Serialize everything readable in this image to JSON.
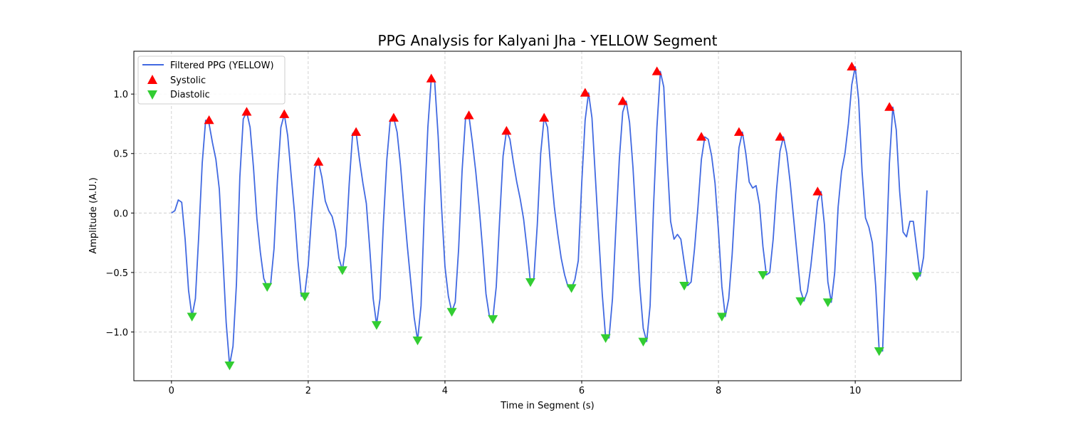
{
  "chart_data": {
    "type": "line",
    "title": "PPG Analysis for Kalyani Jha - YELLOW Segment",
    "xlabel": "Time in Segment (s)",
    "ylabel": "Amplitude (A.U.)",
    "xlim": [
      -0.55,
      11.55
    ],
    "ylim": [
      -1.41,
      1.36
    ],
    "xticks": [
      0,
      2,
      4,
      6,
      8,
      10
    ],
    "yticks": [
      -1.0,
      -0.5,
      0.0,
      0.5,
      1.0
    ],
    "xtick_labels": [
      "0",
      "2",
      "4",
      "6",
      "8",
      "10"
    ],
    "ytick_labels": [
      "−1.0",
      "−0.5",
      "0.0",
      "0.5",
      "1.0"
    ],
    "grid": true,
    "legend_position": "top-left",
    "colors": {
      "line": "#4169e1",
      "systolic": "#ff0000",
      "diastolic": "#32cd32"
    },
    "series": [
      {
        "name": "Filtered PPG (YELLOW)",
        "kind": "line",
        "x": [
          0.0,
          0.05,
          0.1,
          0.15,
          0.2,
          0.25,
          0.3,
          0.35,
          0.4,
          0.45,
          0.5,
          0.55,
          0.6,
          0.65,
          0.7,
          0.75,
          0.8,
          0.85,
          0.9,
          0.95,
          1.0,
          1.05,
          1.1,
          1.15,
          1.2,
          1.25,
          1.3,
          1.35,
          1.4,
          1.45,
          1.5,
          1.55,
          1.6,
          1.65,
          1.7,
          1.75,
          1.8,
          1.85,
          1.9,
          1.95,
          2.0,
          2.05,
          2.1,
          2.15,
          2.2,
          2.25,
          2.3,
          2.35,
          2.4,
          2.45,
          2.5,
          2.55,
          2.6,
          2.65,
          2.7,
          2.75,
          2.8,
          2.85,
          2.9,
          2.95,
          3.0,
          3.05,
          3.1,
          3.15,
          3.2,
          3.25,
          3.3,
          3.35,
          3.4,
          3.45,
          3.5,
          3.55,
          3.6,
          3.65,
          3.7,
          3.75,
          3.8,
          3.85,
          3.9,
          3.95,
          4.0,
          4.05,
          4.1,
          4.15,
          4.2,
          4.25,
          4.3,
          4.35,
          4.4,
          4.45,
          4.5,
          4.55,
          4.6,
          4.65,
          4.7,
          4.75,
          4.8,
          4.85,
          4.9,
          4.95,
          5.0,
          5.05,
          5.1,
          5.15,
          5.2,
          5.25,
          5.3,
          5.35,
          5.4,
          5.45,
          5.5,
          5.55,
          5.6,
          5.65,
          5.7,
          5.75,
          5.8,
          5.85,
          5.9,
          5.95,
          6.0,
          6.05,
          6.1,
          6.15,
          6.2,
          6.25,
          6.3,
          6.35,
          6.4,
          6.45,
          6.5,
          6.55,
          6.6,
          6.65,
          6.7,
          6.75,
          6.8,
          6.85,
          6.9,
          6.95,
          7.0,
          7.05,
          7.1,
          7.15,
          7.2,
          7.25,
          7.3,
          7.35,
          7.4,
          7.45,
          7.5,
          7.55,
          7.6,
          7.65,
          7.7,
          7.75,
          7.8,
          7.85,
          7.9,
          7.95,
          8.0,
          8.05,
          8.1,
          8.15,
          8.2,
          8.25,
          8.3,
          8.35,
          8.4,
          8.45,
          8.5,
          8.55,
          8.6,
          8.65,
          8.7,
          8.75,
          8.8,
          8.85,
          8.9,
          8.95,
          9.0,
          9.05,
          9.1,
          9.15,
          9.2,
          9.25,
          9.3,
          9.35,
          9.4,
          9.45,
          9.5,
          9.55,
          9.6,
          9.65,
          9.7,
          9.75,
          9.8,
          9.85,
          9.9,
          9.95,
          10.0,
          10.05,
          10.1,
          10.15,
          10.2,
          10.25,
          10.3,
          10.35,
          10.4,
          10.45,
          10.5,
          10.55,
          10.6,
          10.65,
          10.7,
          10.75,
          10.8,
          10.85,
          10.9,
          10.95,
          11.0,
          11.05
        ],
        "y": [
          0.0,
          0.02,
          0.11,
          0.09,
          -0.22,
          -0.65,
          -0.87,
          -0.72,
          -0.18,
          0.42,
          0.78,
          0.75,
          0.59,
          0.45,
          0.2,
          -0.35,
          -0.92,
          -1.28,
          -1.12,
          -0.6,
          0.3,
          0.79,
          0.85,
          0.72,
          0.38,
          -0.05,
          -0.33,
          -0.55,
          -0.62,
          -0.6,
          -0.3,
          0.28,
          0.72,
          0.83,
          0.65,
          0.32,
          0.0,
          -0.4,
          -0.7,
          -0.68,
          -0.44,
          -0.02,
          0.38,
          0.43,
          0.3,
          0.1,
          0.02,
          -0.03,
          -0.15,
          -0.38,
          -0.48,
          -0.28,
          0.25,
          0.67,
          0.68,
          0.45,
          0.25,
          0.08,
          -0.3,
          -0.72,
          -0.94,
          -0.72,
          -0.08,
          0.45,
          0.78,
          0.8,
          0.68,
          0.4,
          0.05,
          -0.28,
          -0.58,
          -0.88,
          -1.07,
          -0.78,
          0.05,
          0.72,
          1.13,
          1.1,
          0.65,
          0.05,
          -0.45,
          -0.7,
          -0.83,
          -0.75,
          -0.3,
          0.35,
          0.79,
          0.82,
          0.6,
          0.35,
          0.05,
          -0.3,
          -0.68,
          -0.87,
          -0.89,
          -0.62,
          -0.05,
          0.48,
          0.69,
          0.62,
          0.43,
          0.26,
          0.12,
          -0.05,
          -0.3,
          -0.58,
          -0.55,
          -0.1,
          0.5,
          0.8,
          0.72,
          0.35,
          0.05,
          -0.18,
          -0.38,
          -0.52,
          -0.62,
          -0.63,
          -0.56,
          -0.4,
          0.25,
          0.78,
          1.01,
          0.8,
          0.3,
          -0.2,
          -0.68,
          -1.05,
          -1.05,
          -0.72,
          -0.12,
          0.45,
          0.85,
          0.94,
          0.76,
          0.38,
          -0.12,
          -0.62,
          -0.97,
          -1.08,
          -0.78,
          0.05,
          0.72,
          1.19,
          1.06,
          0.45,
          -0.07,
          -0.22,
          -0.18,
          -0.22,
          -0.42,
          -0.61,
          -0.58,
          -0.3,
          0.05,
          0.45,
          0.64,
          0.62,
          0.48,
          0.25,
          -0.15,
          -0.62,
          -0.87,
          -0.72,
          -0.35,
          0.15,
          0.55,
          0.68,
          0.5,
          0.26,
          0.21,
          0.23,
          0.07,
          -0.28,
          -0.52,
          -0.5,
          -0.22,
          0.2,
          0.52,
          0.64,
          0.5,
          0.25,
          -0.05,
          -0.35,
          -0.65,
          -0.74,
          -0.66,
          -0.45,
          -0.18,
          0.1,
          0.18,
          -0.1,
          -0.58,
          -0.75,
          -0.5,
          0.05,
          0.35,
          0.5,
          0.75,
          1.08,
          1.23,
          0.95,
          0.35,
          -0.04,
          -0.12,
          -0.25,
          -0.62,
          -1.15,
          -1.16,
          -0.4,
          0.42,
          0.89,
          0.7,
          0.18,
          -0.16,
          -0.2,
          -0.07,
          -0.07,
          -0.3,
          -0.53,
          -0.37,
          0.19
        ]
      },
      {
        "name": "Systolic",
        "kind": "scatter",
        "marker": "triangle-up",
        "x": [
          0.55,
          1.1,
          1.65,
          2.15,
          2.7,
          3.25,
          3.8,
          4.35,
          4.9,
          5.45,
          6.05,
          6.6,
          7.1,
          7.75,
          8.3,
          8.9,
          9.45,
          9.95,
          10.5
        ],
        "y": [
          0.78,
          0.85,
          0.83,
          0.43,
          0.68,
          0.8,
          1.13,
          0.82,
          0.69,
          0.8,
          1.01,
          0.94,
          1.19,
          0.64,
          0.68,
          0.64,
          0.18,
          1.23,
          0.89
        ]
      },
      {
        "name": "Diastolic",
        "kind": "scatter",
        "marker": "triangle-down",
        "x": [
          0.3,
          0.85,
          1.4,
          1.95,
          2.5,
          3.0,
          3.6,
          4.1,
          4.7,
          5.25,
          5.85,
          6.35,
          6.9,
          7.5,
          8.05,
          8.65,
          9.2,
          9.6,
          10.35,
          10.9
        ],
        "y": [
          -0.87,
          -1.28,
          -0.62,
          -0.7,
          -0.48,
          -0.94,
          -1.07,
          -0.83,
          -0.89,
          -0.58,
          -0.63,
          -1.05,
          -1.08,
          -0.61,
          -0.87,
          -0.52,
          -0.74,
          -0.75,
          -1.16,
          -0.53
        ]
      }
    ]
  }
}
